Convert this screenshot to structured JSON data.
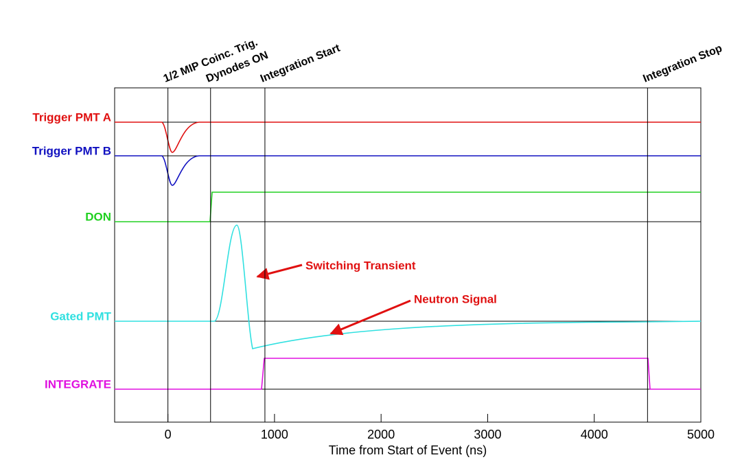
{
  "chart_data": {
    "type": "timing",
    "x_label": "Time from Start of Event (ns)",
    "xlim": [
      -500,
      5000
    ],
    "xticks": [
      0,
      1000,
      2000,
      3000,
      4000,
      5000
    ],
    "events": [
      {
        "label": "1/2 MIP Coinc. Trig.",
        "time": 0
      },
      {
        "label": "Dynodes ON",
        "time": 400
      },
      {
        "label": "Integration Start",
        "time": 910
      },
      {
        "label": "Integration Stop",
        "time": 4500
      }
    ],
    "signals": [
      {
        "name": "Trigger PMT A",
        "color": "#e01010"
      },
      {
        "name": "Trigger PMT B",
        "color": "#1010c0"
      },
      {
        "name": "DON",
        "color": "#20d020"
      },
      {
        "name": "Gated PMT",
        "color": "#30e0e0"
      },
      {
        "name": "INTEGRATE",
        "color": "#e010e0"
      }
    ],
    "annotations": [
      "Switching Transient",
      "Neutron Signal"
    ]
  }
}
